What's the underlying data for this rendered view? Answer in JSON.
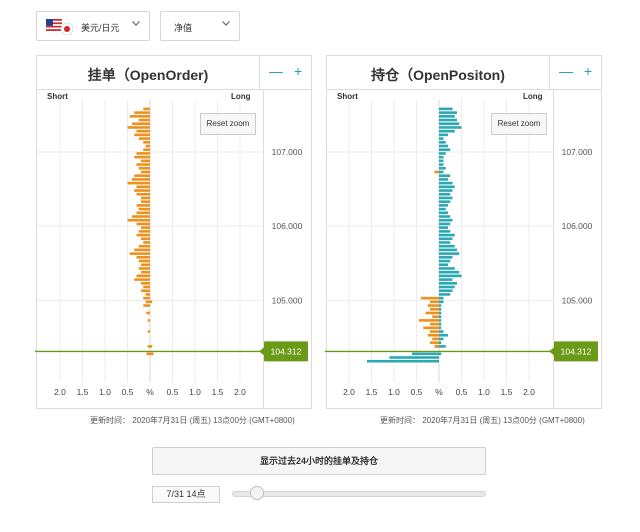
{
  "header": {
    "pair_label": "美元/日元",
    "view_label": "净值"
  },
  "panels": [
    {
      "title": "挂单（OpenOrder)",
      "short_label": "Short",
      "long_label": "Long",
      "reset_label": "Reset zoom",
      "footer": "更新时间：  2020年7月31日 (周五) 13点00分 (GMT+0800)"
    },
    {
      "title": "持仓（OpenPositon)",
      "short_label": "Short",
      "long_label": "Long",
      "reset_label": "Reset zoom",
      "footer": "更新时间：  2020年7月31日 (周五) 13点00分 (GMT+0800)"
    }
  ],
  "controls": {
    "show_24h_label": "显示过去24小时的挂单及持仓",
    "date_label": "7/31 14点",
    "slider_value": 0.1
  },
  "colors": {
    "orders": "#f0901c",
    "positions": "#2aa9b4",
    "price_line": "#6a9a18",
    "accent": "#1aa0b8"
  },
  "chart_data": [
    {
      "type": "bar",
      "title": "挂单（OpenOrder)",
      "orientation": "horizontal",
      "x_ticks": [
        "2.0",
        "1.5",
        "1.0",
        "0.5",
        "%",
        "0.5",
        "1.0",
        "1.5",
        "2.0"
      ],
      "xlim": [
        -2.2,
        2.2
      ],
      "y_ticks": [
        107.0,
        106.0,
        105.0
      ],
      "y_tick_labels": [
        "107.000",
        "106.000",
        "105.000"
      ],
      "ylim": [
        103.9,
        107.7
      ],
      "current_price": 104.312,
      "current_price_label": "104.312",
      "series": [
        {
          "side": "short",
          "color": "#f0901c",
          "price": [
            107.58,
            107.53,
            107.48,
            107.43,
            107.38,
            107.33,
            107.28,
            107.23,
            107.18,
            107.13,
            107.08,
            107.03,
            106.98,
            106.93,
            106.88,
            106.83,
            106.78,
            106.73,
            106.68,
            106.63,
            106.58,
            106.53,
            106.48,
            106.43,
            106.38,
            106.33,
            106.28,
            106.23,
            106.18,
            106.13,
            106.08,
            106.03,
            105.98,
            105.93,
            105.88,
            105.83,
            105.78,
            105.73,
            105.68,
            105.63,
            105.58,
            105.53,
            105.48,
            105.43,
            105.38,
            105.33,
            105.28,
            105.23,
            105.18,
            105.13,
            105.08,
            105.03,
            104.98,
            104.93,
            104.83,
            104.73,
            104.58,
            104.38,
            104.28
          ],
          "values": [
            0.15,
            0.35,
            0.45,
            0.25,
            0.4,
            0.5,
            0.3,
            0.35,
            0.25,
            0.15,
            0.1,
            0.15,
            0.3,
            0.35,
            0.2,
            0.3,
            0.25,
            0.2,
            0.35,
            0.4,
            0.5,
            0.3,
            0.35,
            0.3,
            0.2,
            0.2,
            0.3,
            0.25,
            0.3,
            0.4,
            0.5,
            0.3,
            0.2,
            0.25,
            0.3,
            0.2,
            0.15,
            0.25,
            0.35,
            0.45,
            0.3,
            0.25,
            0.2,
            0.25,
            0.2,
            0.3,
            0.35,
            0.2,
            0.15,
            0.2,
            0.1,
            0.15,
            0.1,
            0.15,
            0.08,
            0.05,
            0.05,
            0.05,
            0.08
          ]
        },
        {
          "side": "long",
          "color": "#f0901c",
          "price": [
            107.58,
            107.53,
            107.48,
            107.43,
            107.38,
            107.33,
            107.28,
            107.23,
            107.18,
            107.13,
            107.08,
            107.03,
            106.98,
            106.93,
            106.88,
            106.83,
            106.78,
            106.73,
            106.68,
            106.63,
            106.58,
            106.53,
            106.48,
            106.43,
            106.38,
            106.33,
            106.28,
            106.23,
            106.18,
            106.13,
            106.08,
            106.03,
            105.98,
            105.93,
            105.88,
            105.83,
            105.78,
            105.73,
            105.68,
            105.63,
            105.58,
            105.53,
            105.48,
            105.43,
            105.38,
            105.33,
            105.28,
            105.23,
            105.18,
            105.13,
            105.08,
            105.03,
            104.98,
            104.93,
            104.83,
            104.73,
            104.58,
            104.38,
            104.28
          ],
          "values": [
            0,
            0,
            0,
            0,
            0,
            0,
            0,
            0,
            0,
            0,
            0,
            0,
            0,
            0,
            0,
            0,
            0,
            0,
            0,
            0,
            0,
            0,
            0,
            0,
            0,
            0,
            0,
            0,
            0,
            0,
            0,
            0,
            0,
            0,
            0,
            0,
            0,
            0,
            0,
            0,
            0,
            0,
            0,
            0,
            0,
            0,
            0,
            0,
            0,
            0,
            0,
            0,
            0.05,
            0,
            0,
            0,
            0,
            0.05,
            0.08
          ]
        }
      ]
    },
    {
      "type": "bar",
      "title": "持仓（OpenPositon)",
      "orientation": "horizontal",
      "x_ticks": [
        "2.0",
        "1.5",
        "1.0",
        "0.5",
        "%",
        "0.5",
        "1.0",
        "1.5",
        "2.0"
      ],
      "xlim": [
        -2.2,
        2.2
      ],
      "y_ticks": [
        107.0,
        106.0,
        105.0
      ],
      "y_tick_labels": [
        "107.000",
        "106.000",
        "105.000"
      ],
      "ylim": [
        103.9,
        107.7
      ],
      "current_price": 104.312,
      "current_price_label": "104.312",
      "series": [
        {
          "side": "long",
          "color": "#2aa9b4",
          "price": [
            107.58,
            107.53,
            107.48,
            107.43,
            107.38,
            107.33,
            107.28,
            107.23,
            107.18,
            107.13,
            107.08,
            107.03,
            106.98,
            106.93,
            106.88,
            106.83,
            106.78,
            106.73,
            106.68,
            106.63,
            106.58,
            106.53,
            106.48,
            106.43,
            106.38,
            106.33,
            106.28,
            106.23,
            106.18,
            106.13,
            106.08,
            106.03,
            105.98,
            105.93,
            105.88,
            105.83,
            105.78,
            105.73,
            105.68,
            105.63,
            105.58,
            105.53,
            105.48,
            105.43,
            105.38,
            105.33,
            105.28,
            105.23,
            105.18,
            105.13,
            105.08,
            105.03,
            104.98,
            104.93,
            104.88,
            104.83,
            104.78,
            104.73,
            104.68,
            104.63,
            104.58,
            104.53,
            104.48,
            104.43,
            104.38,
            104.28
          ],
          "values": [
            0.3,
            0.4,
            0.35,
            0.4,
            0.45,
            0.5,
            0.35,
            0.2,
            0.1,
            0.15,
            0.2,
            0.25,
            0.15,
            0.1,
            0.1,
            0.1,
            0.15,
            0.1,
            0.25,
            0.2,
            0.3,
            0.35,
            0.3,
            0.25,
            0.3,
            0.25,
            0.2,
            0.15,
            0.2,
            0.25,
            0.3,
            0.25,
            0.2,
            0.25,
            0.35,
            0.3,
            0.25,
            0.35,
            0.4,
            0.45,
            0.3,
            0.25,
            0.2,
            0.35,
            0.45,
            0.5,
            0.3,
            0.4,
            0.35,
            0.3,
            0.25,
            0.1,
            0.1,
            0.05,
            0.05,
            0.05,
            0.05,
            0.05,
            0.05,
            0.05,
            0.1,
            0.2,
            0.1,
            0.05,
            0.15,
            0.05
          ]
        },
        {
          "side": "short",
          "color": "#2aa9b4",
          "price": [
            107.58,
            107.53,
            107.48,
            107.43,
            107.38,
            107.33,
            107.28,
            107.23,
            107.18,
            107.13,
            107.08,
            107.03,
            106.98,
            106.93,
            106.88,
            106.83,
            106.78,
            106.73,
            106.68,
            106.63,
            106.58,
            106.53,
            106.48,
            106.43,
            106.38,
            106.33,
            106.28,
            106.23,
            106.18,
            106.13,
            106.08,
            106.03,
            105.98,
            105.93,
            105.88,
            105.83,
            105.78,
            105.73,
            105.68,
            105.63,
            105.58,
            105.53,
            105.48,
            105.43,
            105.38,
            105.33,
            105.28,
            105.23,
            105.18,
            105.13,
            105.08,
            105.03,
            104.98,
            104.93,
            104.88,
            104.83,
            104.78,
            104.73,
            104.68,
            104.63,
            104.58,
            104.53,
            104.48,
            104.43,
            104.38,
            104.28,
            104.23,
            104.18
          ],
          "values": [
            0,
            0,
            0,
            0,
            0,
            0,
            0,
            0,
            0,
            0,
            0,
            0,
            0,
            0,
            0,
            0,
            0,
            0,
            0,
            0,
            0,
            0,
            0,
            0,
            0,
            0,
            0,
            0,
            0,
            0,
            0,
            0,
            0,
            0,
            0,
            0,
            0,
            0,
            0,
            0,
            0,
            0,
            0,
            0,
            0,
            0,
            0,
            0,
            0,
            0,
            0,
            0,
            0,
            0,
            0,
            0,
            0,
            0,
            0,
            0,
            0,
            0,
            0,
            0,
            0.1,
            0.6,
            1.1,
            1.6
          ]
        },
        {
          "side": "short",
          "color": "#f0901c",
          "price": [
            106.73,
            105.03,
            104.98,
            104.93,
            104.88,
            104.83,
            104.78,
            104.73,
            104.68,
            104.63,
            104.58,
            104.53,
            104.48,
            104.43,
            104.38
          ],
          "values": [
            0.1,
            0.4,
            0.2,
            0.25,
            0.2,
            0.3,
            0.15,
            0.45,
            0.2,
            0.35,
            0.2,
            0.25,
            0.15,
            0.2,
            0.1
          ]
        }
      ]
    }
  ]
}
